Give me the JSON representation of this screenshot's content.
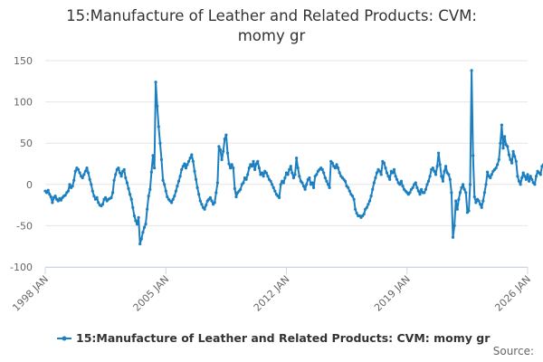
{
  "chart_data": {
    "type": "line",
    "title": "15:Manufacture of Leather and Related Products: CVM: momy gr",
    "title_lines": [
      "15:Manufacture of Leather and Related Products: CVM:",
      "momy gr"
    ],
    "xlabel": "",
    "ylabel": "",
    "x_ticks": [
      "1998 JAN",
      "2005 JAN",
      "2012 JAN",
      "2019 JAN",
      "2026 JAN"
    ],
    "y_ticks": [
      -100,
      -50,
      0,
      50,
      100,
      150
    ],
    "ylim": [
      -100,
      150
    ],
    "xlim": [
      "1998-01",
      "2026-01"
    ],
    "grid": true,
    "legend_position": "bottom",
    "credits": "Source:",
    "color": "#1c7fc0",
    "series": [
      {
        "name": "15:Manufacture of Leather and Related Products: CVM: momy gr",
        "start": "1998-01",
        "values": [
          -8,
          -10,
          -7,
          -12,
          -15,
          -22,
          -16,
          -14,
          -18,
          -20,
          -17,
          -19,
          -16,
          -14,
          -13,
          -10,
          -8,
          0,
          -4,
          -2,
          5,
          16,
          20,
          18,
          14,
          10,
          8,
          12,
          16,
          20,
          14,
          6,
          0,
          -8,
          -14,
          -18,
          -16,
          -22,
          -25,
          -26,
          -24,
          -18,
          -16,
          -20,
          -18,
          -17,
          -16,
          -10,
          5,
          12,
          18,
          20,
          14,
          10,
          16,
          18,
          8,
          2,
          -5,
          -12,
          -18,
          -28,
          -38,
          -44,
          -48,
          -40,
          -72,
          -66,
          -58,
          -52,
          -48,
          -30,
          -14,
          -6,
          15,
          35,
          20,
          124,
          95,
          70,
          50,
          30,
          5,
          0,
          -8,
          -15,
          -18,
          -20,
          -22,
          -18,
          -14,
          -8,
          -2,
          4,
          10,
          18,
          22,
          25,
          20,
          24,
          28,
          32,
          36,
          28,
          16,
          6,
          -4,
          -12,
          -20,
          -24,
          -28,
          -30,
          -25,
          -20,
          -18,
          -16,
          -20,
          -24,
          -22,
          -10,
          2,
          46,
          42,
          30,
          40,
          55,
          60,
          38,
          25,
          20,
          24,
          20,
          -5,
          -15,
          -10,
          -8,
          -6,
          0,
          2,
          8,
          6,
          12,
          20,
          24,
          22,
          28,
          18,
          25,
          28,
          20,
          12,
          14,
          10,
          16,
          14,
          10,
          6,
          4,
          0,
          -4,
          -8,
          -12,
          -14,
          -16,
          0,
          4,
          2,
          8,
          14,
          12,
          18,
          22,
          14,
          8,
          12,
          32,
          20,
          10,
          4,
          2,
          -2,
          -6,
          0,
          6,
          8,
          0,
          2,
          -4,
          10,
          12,
          16,
          18,
          20,
          18,
          14,
          8,
          4,
          0,
          -4,
          28,
          26,
          22,
          20,
          24,
          20,
          14,
          10,
          8,
          6,
          4,
          -2,
          -4,
          -8,
          -12,
          -14,
          -18,
          -30,
          -35,
          -38,
          -38,
          -40,
          -38,
          -36,
          -30,
          -28,
          -24,
          -20,
          -14,
          -6,
          2,
          8,
          14,
          18,
          16,
          12,
          28,
          26,
          20,
          14,
          10,
          6,
          16,
          14,
          18,
          10,
          6,
          2,
          0,
          4,
          -2,
          -6,
          -8,
          -10,
          -12,
          -10,
          -6,
          -4,
          0,
          2,
          -4,
          -8,
          -12,
          -6,
          -10,
          -10,
          -6,
          0,
          4,
          10,
          18,
          20,
          16,
          12,
          22,
          38,
          24,
          10,
          4,
          16,
          22,
          14,
          12,
          6,
          -10,
          -64,
          -50,
          -20,
          -30,
          -18,
          -10,
          -4,
          0,
          -6,
          -10,
          -34,
          -32,
          0,
          138,
          35,
          -15,
          -22,
          -18,
          -20,
          -24,
          -28,
          -20,
          -10,
          0,
          15,
          10,
          8,
          12,
          16,
          18,
          20,
          24,
          30,
          50,
          72,
          44,
          58,
          48,
          46,
          36,
          30,
          26,
          40,
          34,
          28,
          10,
          4,
          0,
          8,
          14,
          10,
          6,
          12,
          4,
          10,
          6,
          2,
          0,
          10,
          16,
          14,
          12,
          22,
          24,
          18,
          10,
          4,
          6,
          8,
          14,
          2,
          -4,
          -8
        ]
      }
    ]
  }
}
